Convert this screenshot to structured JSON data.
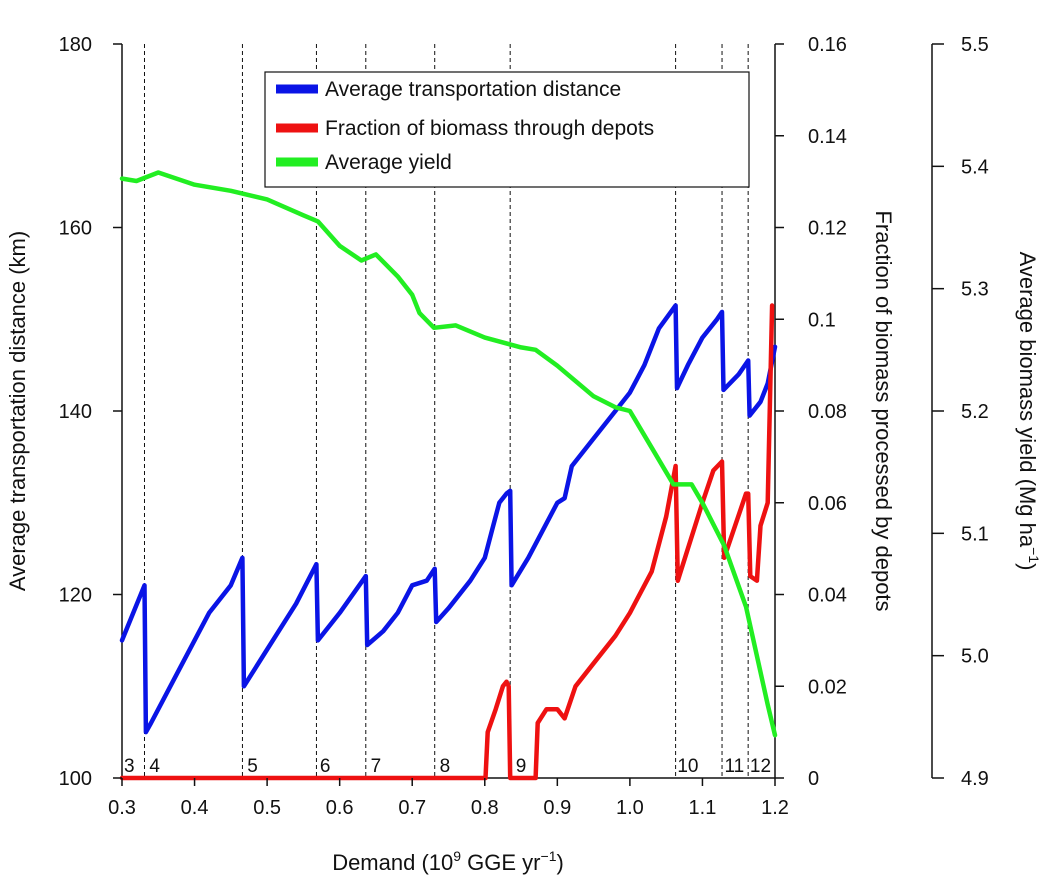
{
  "chart_data": {
    "type": "line",
    "xlabel": "Demand (10^9 GGE yr^-1)",
    "xlabel_parts": {
      "base": "Demand (10",
      "exp1": "9",
      "mid": " GGE yr",
      "exp2": "−1",
      "end": ")"
    },
    "xlim": [
      0.3,
      1.2
    ],
    "x_ticks": [
      "0.3",
      "0.4",
      "0.5",
      "0.6",
      "0.7",
      "0.8",
      "0.9",
      "1.0",
      "1.1",
      "1.2"
    ],
    "y_left": {
      "label": "Average transportation distance (km)",
      "ylim": [
        100,
        180
      ],
      "ticks": [
        "100",
        "120",
        "140",
        "160",
        "180"
      ]
    },
    "y_right": {
      "label": "Fraction of biomass processed by depots",
      "ylim": [
        0,
        0.16
      ],
      "ticks": [
        "0",
        "0.02",
        "0.04",
        "0.06",
        "0.08",
        "0.1",
        "0.12",
        "0.14",
        "0.16"
      ]
    },
    "y_far_right": {
      "label": "Average biomass yield (Mg ha^-1)",
      "label_parts": {
        "base": "Average biomass yield (Mg ha",
        "exp": "−1",
        "end": ")"
      },
      "ylim": [
        4.9,
        5.5
      ],
      "ticks": [
        "4.9",
        "5.0",
        "5.1",
        "5.2",
        "5.3",
        "5.4",
        "5.5"
      ]
    },
    "legend_position": "top-center",
    "grid": false,
    "segment_boundaries": [
      0.331,
      0.466,
      0.568,
      0.636,
      0.731,
      0.835,
      1.063,
      1.127,
      1.163
    ],
    "segment_labels": [
      {
        "text": "3",
        "x": 0.31
      },
      {
        "text": "4",
        "x": 0.345
      },
      {
        "text": "5",
        "x": 0.48
      },
      {
        "text": "6",
        "x": 0.58
      },
      {
        "text": "7",
        "x": 0.65
      },
      {
        "text": "8",
        "x": 0.745
      },
      {
        "text": "9",
        "x": 0.85
      },
      {
        "text": "10",
        "x": 1.08
      },
      {
        "text": "11",
        "x": 1.144
      },
      {
        "text": "12",
        "x": 1.18
      }
    ],
    "series": [
      {
        "name": "Average transportation distance",
        "color": "#0a14e6",
        "axis": "left",
        "points": [
          [
            0.3,
            115
          ],
          [
            0.331,
            121
          ],
          [
            0.333,
            105
          ],
          [
            0.34,
            106
          ],
          [
            0.38,
            112
          ],
          [
            0.42,
            118
          ],
          [
            0.45,
            121
          ],
          [
            0.466,
            124
          ],
          [
            0.468,
            110
          ],
          [
            0.5,
            114
          ],
          [
            0.54,
            119
          ],
          [
            0.568,
            123.3
          ],
          [
            0.57,
            115
          ],
          [
            0.6,
            118
          ],
          [
            0.636,
            122
          ],
          [
            0.638,
            114.5
          ],
          [
            0.66,
            116
          ],
          [
            0.68,
            118
          ],
          [
            0.7,
            121
          ],
          [
            0.72,
            121.5
          ],
          [
            0.731,
            122.8
          ],
          [
            0.733,
            117
          ],
          [
            0.75,
            118.5
          ],
          [
            0.78,
            121.5
          ],
          [
            0.8,
            124
          ],
          [
            0.81,
            127
          ],
          [
            0.82,
            130
          ],
          [
            0.83,
            131
          ],
          [
            0.835,
            131.3
          ],
          [
            0.837,
            121
          ],
          [
            0.86,
            124
          ],
          [
            0.88,
            127
          ],
          [
            0.9,
            130
          ],
          [
            0.91,
            130.5
          ],
          [
            0.92,
            134
          ],
          [
            0.95,
            137
          ],
          [
            0.98,
            140
          ],
          [
            1.0,
            142
          ],
          [
            1.02,
            145
          ],
          [
            1.04,
            149
          ],
          [
            1.063,
            151.5
          ],
          [
            1.065,
            142.5
          ],
          [
            1.08,
            145
          ],
          [
            1.1,
            148
          ],
          [
            1.12,
            150
          ],
          [
            1.127,
            150.8
          ],
          [
            1.129,
            142.3
          ],
          [
            1.15,
            144
          ],
          [
            1.163,
            145.5
          ],
          [
            1.165,
            139.5
          ],
          [
            1.18,
            141
          ],
          [
            1.19,
            143
          ],
          [
            1.2,
            147
          ]
        ]
      },
      {
        "name": "Fraction of biomass through depots",
        "color": "#ee1111",
        "axis": "right",
        "points": [
          [
            0.3,
            0
          ],
          [
            0.801,
            0
          ],
          [
            0.804,
            0.01
          ],
          [
            0.815,
            0.015
          ],
          [
            0.825,
            0.02
          ],
          [
            0.83,
            0.021
          ],
          [
            0.833,
            0.02
          ],
          [
            0.835,
            0
          ],
          [
            0.87,
            0
          ],
          [
            0.873,
            0.012
          ],
          [
            0.885,
            0.015
          ],
          [
            0.9,
            0.015
          ],
          [
            0.91,
            0.013
          ],
          [
            0.925,
            0.02
          ],
          [
            0.95,
            0.025
          ],
          [
            0.98,
            0.031
          ],
          [
            1.0,
            0.036
          ],
          [
            1.03,
            0.045
          ],
          [
            1.05,
            0.057
          ],
          [
            1.063,
            0.068
          ],
          [
            1.066,
            0.043
          ],
          [
            1.08,
            0.05
          ],
          [
            1.1,
            0.06
          ],
          [
            1.115,
            0.067
          ],
          [
            1.127,
            0.069
          ],
          [
            1.13,
            0.048
          ],
          [
            1.145,
            0.055
          ],
          [
            1.16,
            0.062
          ],
          [
            1.163,
            0.062
          ],
          [
            1.166,
            0.044
          ],
          [
            1.175,
            0.043
          ],
          [
            1.18,
            0.055
          ],
          [
            1.19,
            0.06
          ],
          [
            1.196,
            0.103
          ]
        ]
      },
      {
        "name": "Average yield",
        "color": "#22ee22",
        "axis": "far_right",
        "points": [
          [
            0.3,
            5.39
          ],
          [
            0.32,
            5.388
          ],
          [
            0.35,
            5.395
          ],
          [
            0.4,
            5.385
          ],
          [
            0.45,
            5.38
          ],
          [
            0.5,
            5.373
          ],
          [
            0.55,
            5.36
          ],
          [
            0.57,
            5.355
          ],
          [
            0.6,
            5.335
          ],
          [
            0.63,
            5.323
          ],
          [
            0.65,
            5.328
          ],
          [
            0.68,
            5.31
          ],
          [
            0.7,
            5.295
          ],
          [
            0.71,
            5.28
          ],
          [
            0.73,
            5.268
          ],
          [
            0.76,
            5.27
          ],
          [
            0.8,
            5.26
          ],
          [
            0.85,
            5.252
          ],
          [
            0.87,
            5.25
          ],
          [
            0.9,
            5.237
          ],
          [
            0.95,
            5.212
          ],
          [
            0.98,
            5.203
          ],
          [
            1.0,
            5.2
          ],
          [
            1.03,
            5.17
          ],
          [
            1.06,
            5.14
          ],
          [
            1.085,
            5.14
          ],
          [
            1.1,
            5.125
          ],
          [
            1.13,
            5.09
          ],
          [
            1.16,
            5.04
          ],
          [
            1.19,
            4.96
          ],
          [
            1.2,
            4.935
          ]
        ]
      }
    ]
  }
}
